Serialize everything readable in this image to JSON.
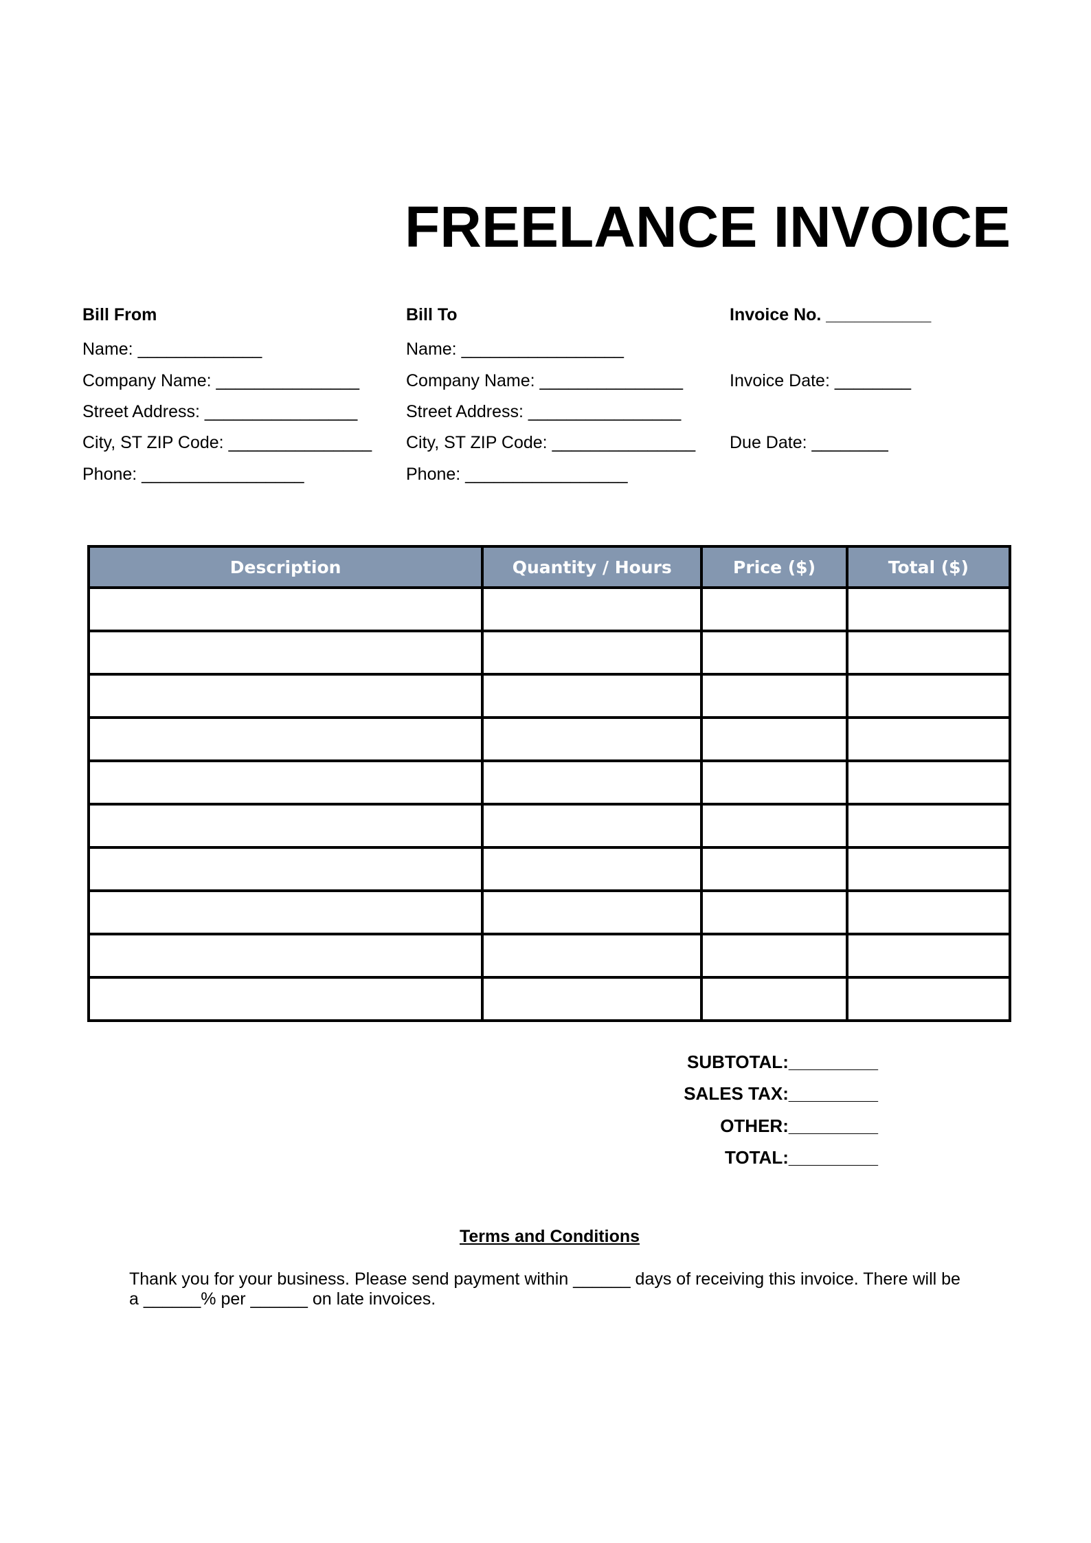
{
  "title": "FREELANCE INVOICE",
  "bill_from": {
    "heading": "Bill From",
    "fields": [
      "Name: _____________",
      "Company Name: _______________",
      "Street Address: ________________",
      "City, ST ZIP Code: _______________",
      "Phone: _________________"
    ]
  },
  "bill_to": {
    "heading": "Bill To",
    "fields": [
      "Name: _________________",
      "Company Name: _______________",
      "Street Address: ________________",
      "City, ST ZIP Code: _______________",
      "Phone: _________________"
    ]
  },
  "invoice": {
    "number": "Invoice No. ___________",
    "date": "Invoice Date: ________",
    "due": "Due Date: ________"
  },
  "table": {
    "headers": [
      "Description",
      "Quantity / Hours",
      "Price ($)",
      "Total ($)"
    ],
    "header_color": "#8497b0",
    "rows": 10
  },
  "totals": [
    "SUBTOTAL:_________",
    "SALES TAX:_________",
    "OTHER:_________",
    "TOTAL:_________"
  ],
  "terms": {
    "title": "Terms and Conditions",
    "text": "Thank you for your business. Please send payment within ______ days of receiving this invoice. There will be a ______% per ______ on late invoices."
  }
}
